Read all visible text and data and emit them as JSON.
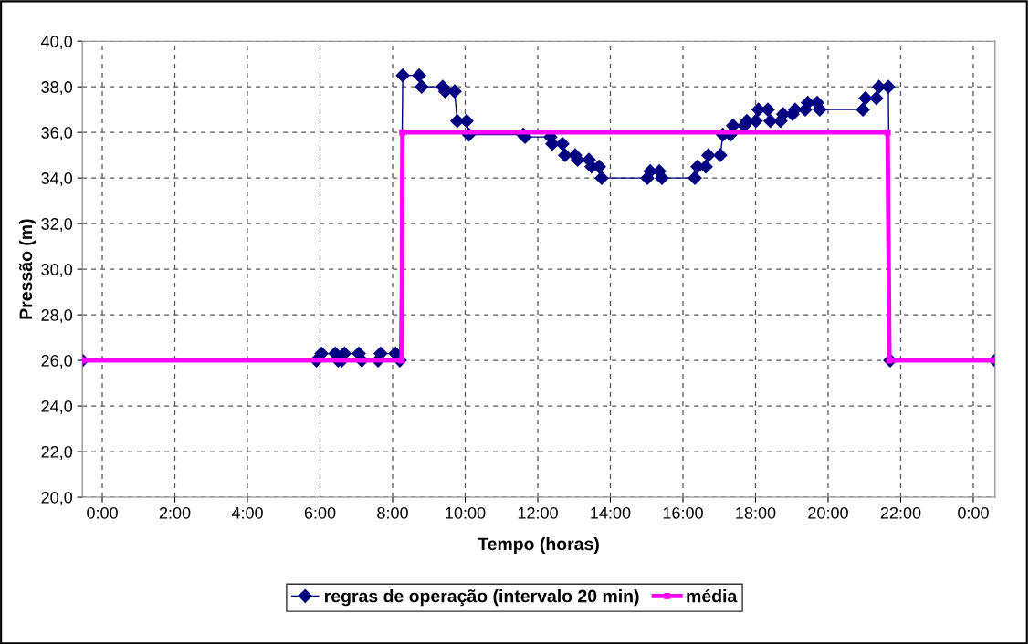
{
  "chart_data": {
    "type": "line",
    "xlabel": "Tempo (horas)",
    "ylabel": "Pressão (m)",
    "xlim": [
      -0.55,
      24.6
    ],
    "ylim": [
      20,
      40
    ],
    "xticks": [
      {
        "value": 0,
        "label": "0:00"
      },
      {
        "value": 2,
        "label": "2:00"
      },
      {
        "value": 4,
        "label": "4:00"
      },
      {
        "value": 6,
        "label": "6:00"
      },
      {
        "value": 8,
        "label": "8:00"
      },
      {
        "value": 10,
        "label": "10:00"
      },
      {
        "value": 12,
        "label": "12:00"
      },
      {
        "value": 14,
        "label": "14:00"
      },
      {
        "value": 16,
        "label": "16:00"
      },
      {
        "value": 18,
        "label": "18:00"
      },
      {
        "value": 20,
        "label": "20:00"
      },
      {
        "value": 22,
        "label": "22:00"
      },
      {
        "value": 24,
        "label": "0:00"
      }
    ],
    "yticks": [
      {
        "value": 20,
        "label": "20,0"
      },
      {
        "value": 22,
        "label": "22,0"
      },
      {
        "value": 24,
        "label": "24,0"
      },
      {
        "value": 26,
        "label": "26,0"
      },
      {
        "value": 28,
        "label": "28,0"
      },
      {
        "value": 30,
        "label": "30,0"
      },
      {
        "value": 32,
        "label": "32,0"
      },
      {
        "value": 34,
        "label": "34,0"
      },
      {
        "value": 36,
        "label": "36,0"
      },
      {
        "value": 38,
        "label": "38,0"
      },
      {
        "value": 40,
        "label": "40,0"
      }
    ],
    "grid": true,
    "legend": "bottom",
    "line_style": "solid",
    "series": [
      {
        "name": "regras de operação (intervalo 20 min)",
        "color": "#000080",
        "marker": "diamond",
        "x": [
          -0.55,
          5.9,
          6.04,
          6.42,
          6.5,
          6.6,
          6.67,
          7.07,
          7.15,
          7.6,
          7.67,
          8.08,
          8.2,
          8.28,
          8.73,
          8.8,
          9.38,
          9.45,
          9.71,
          9.78,
          10.04,
          10.1,
          11.6,
          11.65,
          12.35,
          12.4,
          12.68,
          12.75,
          13.03,
          13.1,
          13.41,
          13.48,
          13.69,
          13.76,
          15.02,
          15.1,
          15.35,
          15.42,
          16.33,
          16.4,
          16.63,
          16.7,
          17.03,
          17.1,
          17.31,
          17.38,
          17.69,
          17.76,
          18.01,
          18.08,
          18.34,
          18.41,
          18.69,
          18.76,
          19.02,
          19.09,
          19.37,
          19.44,
          19.7,
          19.77,
          20.96,
          21.03,
          21.33,
          21.4,
          21.66,
          21.71,
          24.6
        ],
        "values": [
          26.0,
          26.0,
          26.3,
          26.3,
          26.0,
          26.0,
          26.3,
          26.3,
          26.0,
          26.0,
          26.3,
          26.3,
          26.0,
          38.5,
          38.5,
          38.0,
          38.0,
          37.8,
          37.8,
          36.5,
          36.5,
          35.9,
          35.9,
          35.8,
          35.8,
          35.5,
          35.5,
          35.0,
          35.0,
          34.8,
          34.8,
          34.5,
          34.5,
          34.0,
          34.0,
          34.3,
          34.3,
          34.0,
          34.0,
          34.5,
          34.5,
          35.0,
          35.0,
          35.9,
          35.9,
          36.3,
          36.3,
          36.5,
          36.5,
          37.0,
          37.0,
          36.5,
          36.5,
          36.8,
          36.8,
          37.0,
          37.0,
          37.3,
          37.3,
          37.0,
          37.0,
          37.5,
          37.5,
          38.0,
          38.0,
          26.0,
          26.0
        ]
      },
      {
        "name": "média",
        "color": "#ff00ff",
        "marker": "square",
        "x": [
          -0.55,
          8.25,
          8.27,
          21.64,
          21.69,
          24.6
        ],
        "values": [
          26.0,
          26.0,
          36.0,
          36.0,
          26.0,
          26.0
        ]
      }
    ]
  }
}
